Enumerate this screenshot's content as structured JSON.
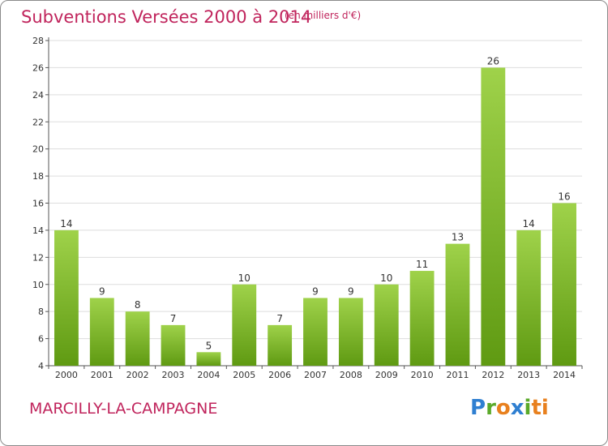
{
  "header": {
    "title": "Subventions Versées 2000 à 2014",
    "subtitle": "(en milliers d'€)"
  },
  "footer": {
    "commune": "MARCILLY-LA-CAMPAGNE",
    "logo": [
      "P",
      "r",
      "o",
      "x",
      "i",
      "t",
      "i"
    ]
  },
  "colors": {
    "title": "#c0245c",
    "bar_top": "#9fd24a",
    "bar_bottom": "#5f9a12",
    "grid": "#dddddd"
  },
  "chart_data": {
    "type": "bar",
    "categories": [
      "2000",
      "2001",
      "2002",
      "2003",
      "2004",
      "2005",
      "2006",
      "2007",
      "2008",
      "2009",
      "2010",
      "2011",
      "2012",
      "2013",
      "2014"
    ],
    "values": [
      14,
      9,
      8,
      7,
      5,
      10,
      7,
      9,
      9,
      10,
      11,
      13,
      26,
      14,
      16
    ],
    "ylim": [
      4,
      28
    ],
    "yticks": [
      4,
      6,
      8,
      10,
      12,
      14,
      16,
      18,
      20,
      22,
      24,
      26,
      28
    ],
    "grid": true
  }
}
